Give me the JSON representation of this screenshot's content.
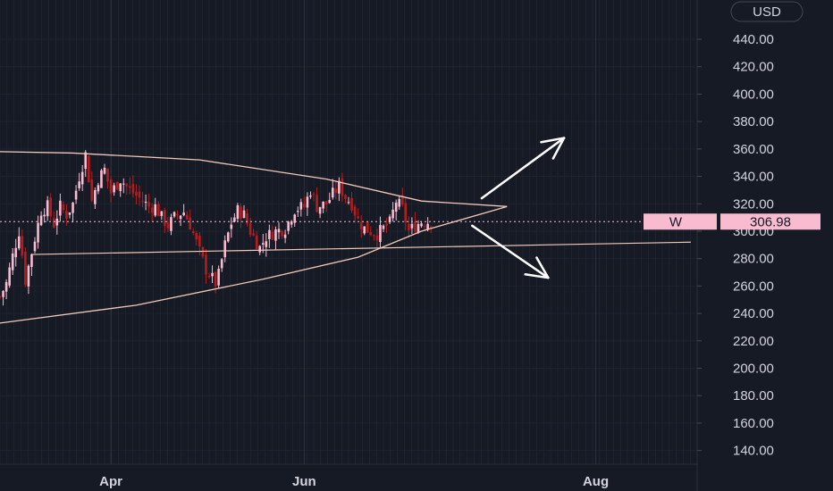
{
  "chart_data": {
    "type": "candlestick",
    "currency": "USD",
    "ylim": [
      130,
      460
    ],
    "y_ticks": [
      140,
      160,
      180,
      200,
      220,
      240,
      260,
      280,
      300,
      320,
      340,
      360,
      380,
      400,
      420,
      440
    ],
    "y_tick_labels": [
      "140.00",
      "160.00",
      "180.00",
      "200.00",
      "220.00",
      "240.00",
      "260.00",
      "280.00",
      "300.00",
      "320.00",
      "340.00",
      "360.00",
      "380.00",
      "400.00",
      "420.00",
      "440.00"
    ],
    "x_ticks": [
      {
        "label": "Apr",
        "day": 32
      },
      {
        "label": "Jun",
        "day": 93
      },
      {
        "label": "Aug",
        "day": 185
      }
    ],
    "x_range_days": [
      -3,
      217
    ],
    "last_price": {
      "label": "W",
      "value": 306.98
    },
    "colors": {
      "up": "#f8bbd0",
      "down": "#b71c1c",
      "line": "#f2c9b8",
      "arrow": "#ffffff",
      "price_tag": "#f8bbd0",
      "background": "#161a25",
      "grid": "#262a35"
    },
    "candles": {
      "start_day": -3,
      "end_day": 133,
      "anchors": [
        [
          -3,
          252
        ],
        [
          -1,
          262
        ],
        [
          1,
          282
        ],
        [
          3,
          300
        ],
        [
          4,
          283
        ],
        [
          5,
          264
        ],
        [
          8,
          295
        ],
        [
          10,
          315
        ],
        [
          12,
          318
        ],
        [
          14,
          305
        ],
        [
          16,
          318
        ],
        [
          18,
          312
        ],
        [
          20,
          320
        ],
        [
          22,
          340
        ],
        [
          23,
          348
        ],
        [
          24,
          356
        ],
        [
          26,
          322
        ],
        [
          28,
          338
        ],
        [
          30,
          345
        ],
        [
          32,
          328
        ],
        [
          35,
          338
        ],
        [
          38,
          330
        ],
        [
          40,
          326
        ],
        [
          42,
          322
        ],
        [
          44,
          318
        ],
        [
          46,
          318
        ],
        [
          48,
          310
        ],
        [
          50,
          304
        ],
        [
          52,
          310
        ],
        [
          53,
          312
        ],
        [
          55,
          314
        ],
        [
          57,
          305
        ],
        [
          60,
          285
        ],
        [
          62,
          272
        ],
        [
          65,
          262
        ],
        [
          66,
          268
        ],
        [
          68,
          290
        ],
        [
          70,
          306
        ],
        [
          72,
          315
        ],
        [
          74,
          312
        ],
        [
          76,
          300
        ],
        [
          79,
          288
        ],
        [
          81,
          296
        ],
        [
          84,
          300
        ],
        [
          87,
          302
        ],
        [
          90,
          316
        ],
        [
          93,
          318
        ],
        [
          95,
          330
        ],
        [
          97,
          318
        ],
        [
          100,
          320
        ],
        [
          102,
          327
        ],
        [
          104,
          333
        ],
        [
          106,
          325
        ],
        [
          108,
          320
        ],
        [
          110,
          308
        ],
        [
          112,
          302
        ],
        [
          114,
          300
        ],
        [
          116,
          298
        ],
        [
          118,
          302
        ],
        [
          120,
          306
        ],
        [
          122,
          322
        ],
        [
          124,
          316
        ],
        [
          126,
          300
        ],
        [
          128,
          304
        ],
        [
          130,
          307
        ],
        [
          133,
          306.98
        ]
      ]
    },
    "overlays": {
      "triangle_upper": [
        [
          -3,
          358
        ],
        [
          20,
          357
        ],
        [
          60,
          352
        ],
        [
          100,
          338
        ],
        [
          130,
          322
        ],
        [
          157,
          318
        ]
      ],
      "triangle_lower": [
        [
          -3,
          233
        ],
        [
          40,
          246
        ],
        [
          80,
          265
        ],
        [
          110,
          281
        ],
        [
          130,
          300
        ],
        [
          157,
          318
        ]
      ],
      "horizontal_line": {
        "from_day": 7,
        "to_day": 215,
        "y1": 283,
        "y2": 292
      },
      "last_price_line": true,
      "arrow_up": {
        "from": [
          149,
          324
        ],
        "to": [
          175,
          368
        ]
      },
      "arrow_down": {
        "from": [
          146,
          304
        ],
        "to": [
          170,
          266
        ]
      }
    }
  }
}
